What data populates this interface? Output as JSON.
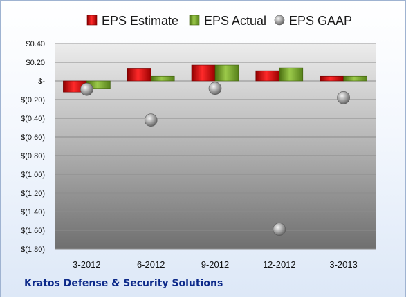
{
  "chart_data": {
    "type": "bar",
    "categories": [
      "3-2012",
      "6-2012",
      "9-2012",
      "12-2012",
      "3-2013"
    ],
    "series": [
      {
        "name": "EPS Estimate",
        "kind": "bar",
        "color": "#cc0000",
        "values": [
          -0.12,
          0.13,
          0.17,
          0.11,
          0.05
        ]
      },
      {
        "name": "EPS Actual",
        "kind": "bar",
        "color": "#6a9a1f",
        "values": [
          -0.08,
          0.05,
          0.17,
          0.14,
          0.05
        ]
      },
      {
        "name": "EPS GAAP",
        "kind": "scatter",
        "color": "#a6a6a6",
        "values": [
          -0.09,
          -0.42,
          -0.08,
          -1.59,
          -0.18
        ]
      }
    ],
    "ylim": [
      -1.8,
      0.4
    ],
    "yticks": [
      0.4,
      0.2,
      0,
      -0.2,
      -0.4,
      -0.6,
      -0.8,
      -1.0,
      -1.2,
      -1.4,
      -1.6,
      -1.8
    ],
    "ytick_labels": [
      "$0.40",
      "$0.20",
      "$-",
      "$(0.20)",
      "$(0.40)",
      "$(0.60)",
      "$(0.80)",
      "$(1.00)",
      "$(1.20)",
      "$(1.40)",
      "$(1.60)",
      "$(1.80)"
    ],
    "grid": true,
    "legend_position": "top"
  },
  "footer": {
    "company": "Kratos Defense & Security Solutions"
  }
}
